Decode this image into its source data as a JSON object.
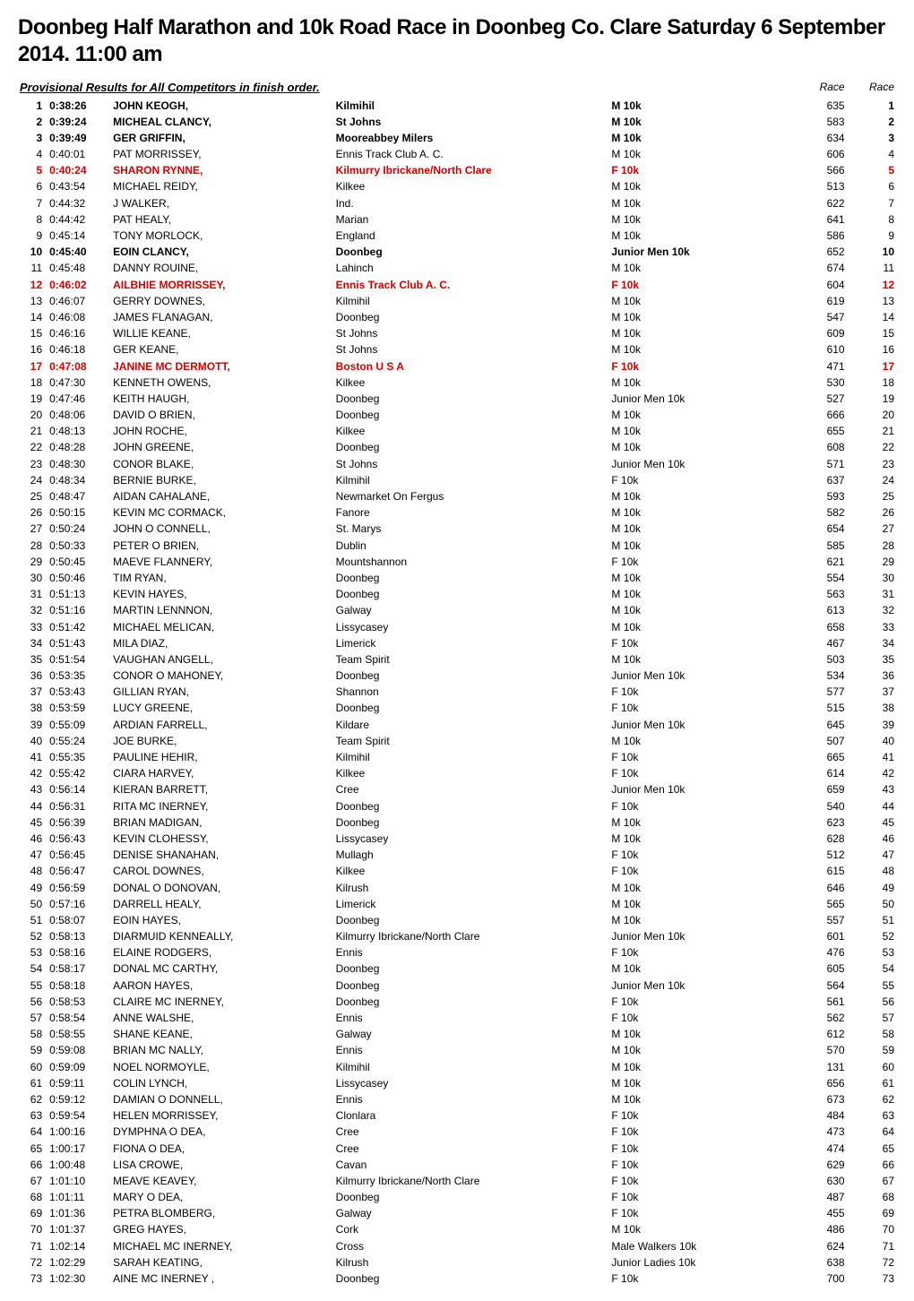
{
  "title": "Doonbeg Half Marathon and 10k Road Race in Doonbeg Co. Clare Saturday 6 September 2014. 11:00 am",
  "subtitle": "Provisional Results for All Competitors in finish order.",
  "header_race": "Race",
  "rows": [
    {
      "pos": 1,
      "time": "0:38:26",
      "name": "JOHN KEOGH,",
      "club": "Kilmihil",
      "cat": "M 10k",
      "rn1": 635,
      "rn2": 1,
      "bold": true
    },
    {
      "pos": 2,
      "time": "0:39:24",
      "name": "MICHEAL CLANCY,",
      "club": "St Johns",
      "cat": "M 10k",
      "rn1": 583,
      "rn2": 2,
      "bold": true
    },
    {
      "pos": 3,
      "time": "0:39:49",
      "name": "GER GRIFFIN,",
      "club": "Mooreabbey Milers",
      "cat": "M 10k",
      "rn1": 634,
      "rn2": 3,
      "bold": true
    },
    {
      "pos": 4,
      "time": "0:40:01",
      "name": "PAT MORRISSEY,",
      "club": "Ennis Track Club A. C.",
      "cat": "M 10k",
      "rn1": 606,
      "rn2": 4
    },
    {
      "pos": 5,
      "time": "0:40:24",
      "name": "SHARON RYNNE,",
      "club": "Kilmurry Ibrickane/North Clare",
      "cat": "F 10k",
      "rn1": 566,
      "rn2": 5,
      "bold": true,
      "red": true
    },
    {
      "pos": 6,
      "time": "0:43:54",
      "name": "MICHAEL REIDY,",
      "club": "Kilkee",
      "cat": "M 10k",
      "rn1": 513,
      "rn2": 6
    },
    {
      "pos": 7,
      "time": "0:44:32",
      "name": "J WALKER,",
      "club": "Ind.",
      "cat": "M 10k",
      "rn1": 622,
      "rn2": 7
    },
    {
      "pos": 8,
      "time": "0:44:42",
      "name": "PAT HEALY,",
      "club": "Marian",
      "cat": "M 10k",
      "rn1": 641,
      "rn2": 8
    },
    {
      "pos": 9,
      "time": "0:45:14",
      "name": "TONY MORLOCK,",
      "club": "England",
      "cat": "M 10k",
      "rn1": 586,
      "rn2": 9
    },
    {
      "pos": 10,
      "time": "0:45:40",
      "name": "EOIN CLANCY,",
      "club": "Doonbeg",
      "cat": "Junior Men 10k",
      "rn1": 652,
      "rn2": 10,
      "bold": true
    },
    {
      "pos": 11,
      "time": "0:45:48",
      "name": "DANNY ROUINE,",
      "club": "Lahinch",
      "cat": "M 10k",
      "rn1": 674,
      "rn2": 11
    },
    {
      "pos": 12,
      "time": "0:46:02",
      "name": "AILBHIE MORRISSEY,",
      "club": "Ennis Track Club A. C.",
      "cat": "F 10k",
      "rn1": 604,
      "rn2": 12,
      "bold": true,
      "red": true
    },
    {
      "pos": 13,
      "time": "0:46:07",
      "name": "GERRY DOWNES,",
      "club": "Kilmihil",
      "cat": "M 10k",
      "rn1": 619,
      "rn2": 13
    },
    {
      "pos": 14,
      "time": "0:46:08",
      "name": "JAMES FLANAGAN,",
      "club": "Doonbeg",
      "cat": "M 10k",
      "rn1": 547,
      "rn2": 14
    },
    {
      "pos": 15,
      "time": "0:46:16",
      "name": "WILLIE KEANE,",
      "club": "St Johns",
      "cat": "M 10k",
      "rn1": 609,
      "rn2": 15
    },
    {
      "pos": 16,
      "time": "0:46:18",
      "name": "GER KEANE,",
      "club": "St Johns",
      "cat": "M 10k",
      "rn1": 610,
      "rn2": 16
    },
    {
      "pos": 17,
      "time": "0:47:08",
      "name": "JANINE MC DERMOTT,",
      "club": "Boston  U S A",
      "cat": "F 10k",
      "rn1": 471,
      "rn2": 17,
      "bold": true,
      "red": true
    },
    {
      "pos": 18,
      "time": "0:47:30",
      "name": "KENNETH OWENS,",
      "club": "Kilkee",
      "cat": "M 10k",
      "rn1": 530,
      "rn2": 18
    },
    {
      "pos": 19,
      "time": "0:47:46",
      "name": "KEITH HAUGH,",
      "club": "Doonbeg",
      "cat": "Junior Men 10k",
      "rn1": 527,
      "rn2": 19
    },
    {
      "pos": 20,
      "time": "0:48:06",
      "name": "DAVID O BRIEN,",
      "club": "Doonbeg",
      "cat": "M 10k",
      "rn1": 666,
      "rn2": 20
    },
    {
      "pos": 21,
      "time": "0:48:13",
      "name": "JOHN ROCHE,",
      "club": "Kilkee",
      "cat": "M 10k",
      "rn1": 655,
      "rn2": 21
    },
    {
      "pos": 22,
      "time": "0:48:28",
      "name": "JOHN GREENE,",
      "club": "Doonbeg",
      "cat": "M 10k",
      "rn1": 608,
      "rn2": 22
    },
    {
      "pos": 23,
      "time": "0:48:30",
      "name": "CONOR BLAKE,",
      "club": "St Johns",
      "cat": "Junior Men 10k",
      "rn1": 571,
      "rn2": 23
    },
    {
      "pos": 24,
      "time": "0:48:34",
      "name": "BERNIE BURKE,",
      "club": "Kilmihil",
      "cat": "F 10k",
      "rn1": 637,
      "rn2": 24
    },
    {
      "pos": 25,
      "time": "0:48:47",
      "name": "AIDAN CAHALANE,",
      "club": "Newmarket On Fergus",
      "cat": "M 10k",
      "rn1": 593,
      "rn2": 25
    },
    {
      "pos": 26,
      "time": "0:50:15",
      "name": "KEVIN MC CORMACK,",
      "club": "Fanore",
      "cat": "M 10k",
      "rn1": 582,
      "rn2": 26
    },
    {
      "pos": 27,
      "time": "0:50:24",
      "name": "JOHN O CONNELL,",
      "club": "St. Marys",
      "cat": "M 10k",
      "rn1": 654,
      "rn2": 27
    },
    {
      "pos": 28,
      "time": "0:50:33",
      "name": "PETER O BRIEN,",
      "club": "Dublin",
      "cat": "M 10k",
      "rn1": 585,
      "rn2": 28
    },
    {
      "pos": 29,
      "time": "0:50:45",
      "name": "MAEVE FLANNERY,",
      "club": "Mountshannon",
      "cat": "F 10k",
      "rn1": 621,
      "rn2": 29
    },
    {
      "pos": 30,
      "time": "0:50:46",
      "name": "TIM RYAN,",
      "club": "Doonbeg",
      "cat": "M 10k",
      "rn1": 554,
      "rn2": 30
    },
    {
      "pos": 31,
      "time": "0:51:13",
      "name": "KEVIN HAYES,",
      "club": "Doonbeg",
      "cat": "M 10k",
      "rn1": 563,
      "rn2": 31
    },
    {
      "pos": 32,
      "time": "0:51:16",
      "name": "MARTIN LENNNON,",
      "club": "Galway",
      "cat": "M 10k",
      "rn1": 613,
      "rn2": 32
    },
    {
      "pos": 33,
      "time": "0:51:42",
      "name": "MICHAEL MELICAN,",
      "club": "Lissycasey",
      "cat": "M 10k",
      "rn1": 658,
      "rn2": 33
    },
    {
      "pos": 34,
      "time": "0:51:43",
      "name": "MILA DIAZ,",
      "club": "Limerick",
      "cat": "F 10k",
      "rn1": 467,
      "rn2": 34
    },
    {
      "pos": 35,
      "time": "0:51:54",
      "name": "VAUGHAN ANGELL,",
      "club": "Team Spirit",
      "cat": "M 10k",
      "rn1": 503,
      "rn2": 35
    },
    {
      "pos": 36,
      "time": "0:53:35",
      "name": "CONOR O MAHONEY,",
      "club": "Doonbeg",
      "cat": "Junior Men 10k",
      "rn1": 534,
      "rn2": 36
    },
    {
      "pos": 37,
      "time": "0:53:43",
      "name": "GILLIAN RYAN,",
      "club": "Shannon",
      "cat": "F 10k",
      "rn1": 577,
      "rn2": 37
    },
    {
      "pos": 38,
      "time": "0:53:59",
      "name": "LUCY GREENE,",
      "club": "Doonbeg",
      "cat": "F 10k",
      "rn1": 515,
      "rn2": 38
    },
    {
      "pos": 39,
      "time": "0:55:09",
      "name": "ARDIAN FARRELL,",
      "club": "Kildare",
      "cat": "Junior Men 10k",
      "rn1": 645,
      "rn2": 39
    },
    {
      "pos": 40,
      "time": "0:55:24",
      "name": "JOE BURKE,",
      "club": "Team Spirit",
      "cat": "M 10k",
      "rn1": 507,
      "rn2": 40
    },
    {
      "pos": 41,
      "time": "0:55:35",
      "name": "PAULINE HEHIR,",
      "club": "Kilmihil",
      "cat": "F 10k",
      "rn1": 665,
      "rn2": 41
    },
    {
      "pos": 42,
      "time": "0:55:42",
      "name": "CIARA HARVEY,",
      "club": "Kilkee",
      "cat": "F 10k",
      "rn1": 614,
      "rn2": 42
    },
    {
      "pos": 43,
      "time": "0:56:14",
      "name": "KIERAN BARRETT,",
      "club": "Cree",
      "cat": "Junior Men 10k",
      "rn1": 659,
      "rn2": 43
    },
    {
      "pos": 44,
      "time": "0:56:31",
      "name": "RITA MC INERNEY,",
      "club": "Doonbeg",
      "cat": "F 10k",
      "rn1": 540,
      "rn2": 44
    },
    {
      "pos": 45,
      "time": "0:56:39",
      "name": "BRIAN MADIGAN,",
      "club": "Doonbeg",
      "cat": "M 10k",
      "rn1": 623,
      "rn2": 45
    },
    {
      "pos": 46,
      "time": "0:56:43",
      "name": "KEVIN CLOHESSY,",
      "club": "Lissycasey",
      "cat": "M 10k",
      "rn1": 628,
      "rn2": 46
    },
    {
      "pos": 47,
      "time": "0:56:45",
      "name": "DENISE SHANAHAN,",
      "club": "Mullagh",
      "cat": "F 10k",
      "rn1": 512,
      "rn2": 47
    },
    {
      "pos": 48,
      "time": "0:56:47",
      "name": "CAROL DOWNES,",
      "club": "Kilkee",
      "cat": "F 10k",
      "rn1": 615,
      "rn2": 48
    },
    {
      "pos": 49,
      "time": "0:56:59",
      "name": "DONAL O DONOVAN,",
      "club": "Kilrush",
      "cat": "M 10k",
      "rn1": 646,
      "rn2": 49
    },
    {
      "pos": 50,
      "time": "0:57:16",
      "name": "DARRELL HEALY,",
      "club": "Limerick",
      "cat": "M 10k",
      "rn1": 565,
      "rn2": 50
    },
    {
      "pos": 51,
      "time": "0:58:07",
      "name": "EOIN HAYES,",
      "club": "Doonbeg",
      "cat": "M 10k",
      "rn1": 557,
      "rn2": 51
    },
    {
      "pos": 52,
      "time": "0:58:13",
      "name": "DIARMUID KENNEALLY,",
      "club": "Kilmurry Ibrickane/North Clare",
      "cat": "Junior Men 10k",
      "rn1": 601,
      "rn2": 52
    },
    {
      "pos": 53,
      "time": "0:58:16",
      "name": "ELAINE RODGERS,",
      "club": "Ennis",
      "cat": "F 10k",
      "rn1": 476,
      "rn2": 53
    },
    {
      "pos": 54,
      "time": "0:58:17",
      "name": "DONAL MC CARTHY,",
      "club": "Doonbeg",
      "cat": "M 10k",
      "rn1": 605,
      "rn2": 54
    },
    {
      "pos": 55,
      "time": "0:58:18",
      "name": "AARON HAYES,",
      "club": "Doonbeg",
      "cat": "Junior Men 10k",
      "rn1": 564,
      "rn2": 55
    },
    {
      "pos": 56,
      "time": "0:58:53",
      "name": "CLAIRE MC INERNEY,",
      "club": "Doonbeg",
      "cat": "F 10k",
      "rn1": 561,
      "rn2": 56
    },
    {
      "pos": 57,
      "time": "0:58:54",
      "name": "ANNE WALSHE,",
      "club": "Ennis",
      "cat": "F 10k",
      "rn1": 562,
      "rn2": 57
    },
    {
      "pos": 58,
      "time": "0:58:55",
      "name": "SHANE KEANE,",
      "club": "Galway",
      "cat": "M 10k",
      "rn1": 612,
      "rn2": 58
    },
    {
      "pos": 59,
      "time": "0:59:08",
      "name": "BRIAN MC NALLY,",
      "club": "Ennis",
      "cat": "M 10k",
      "rn1": 570,
      "rn2": 59
    },
    {
      "pos": 60,
      "time": "0:59:09",
      "name": "NOEL NORMOYLE,",
      "club": "Kilmihil",
      "cat": "M 10k",
      "rn1": 131,
      "rn2": 60
    },
    {
      "pos": 61,
      "time": "0:59:11",
      "name": "COLIN LYNCH,",
      "club": "Lissycasey",
      "cat": "M 10k",
      "rn1": 656,
      "rn2": 61
    },
    {
      "pos": 62,
      "time": "0:59:12",
      "name": "DAMIAN O DONNELL,",
      "club": "Ennis",
      "cat": "M 10k",
      "rn1": 673,
      "rn2": 62
    },
    {
      "pos": 63,
      "time": "0:59:54",
      "name": "HELEN MORRISSEY,",
      "club": "Clonlara",
      "cat": "F 10k",
      "rn1": 484,
      "rn2": 63
    },
    {
      "pos": 64,
      "time": "1:00:16",
      "name": "DYMPHNA O DEA,",
      "club": "Cree",
      "cat": "F 10k",
      "rn1": 473,
      "rn2": 64
    },
    {
      "pos": 65,
      "time": "1:00:17",
      "name": "FIONA O DEA,",
      "club": "Cree",
      "cat": "F 10k",
      "rn1": 474,
      "rn2": 65
    },
    {
      "pos": 66,
      "time": "1:00:48",
      "name": "LISA CROWE,",
      "club": "Cavan",
      "cat": "F 10k",
      "rn1": 629,
      "rn2": 66
    },
    {
      "pos": 67,
      "time": "1:01:10",
      "name": "MEAVE KEAVEY,",
      "club": "Kilmurry Ibrickane/North Clare",
      "cat": "F 10k",
      "rn1": 630,
      "rn2": 67
    },
    {
      "pos": 68,
      "time": "1:01:11",
      "name": "MARY O DEA,",
      "club": "Doonbeg",
      "cat": "F 10k",
      "rn1": 487,
      "rn2": 68
    },
    {
      "pos": 69,
      "time": "1:01:36",
      "name": "PETRA BLOMBERG,",
      "club": "Galway",
      "cat": "F 10k",
      "rn1": 455,
      "rn2": 69
    },
    {
      "pos": 70,
      "time": "1:01:37",
      "name": "GREG HAYES,",
      "club": "Cork",
      "cat": "M 10k",
      "rn1": 486,
      "rn2": 70
    },
    {
      "pos": 71,
      "time": "1:02:14",
      "name": "MICHAEL MC INERNEY,",
      "club": "Cross",
      "cat": "Male Walkers 10k",
      "rn1": 624,
      "rn2": 71
    },
    {
      "pos": 72,
      "time": "1:02:29",
      "name": "SARAH KEATING,",
      "club": "Kilrush",
      "cat": "Junior Ladies 10k",
      "rn1": 638,
      "rn2": 72
    },
    {
      "pos": 73,
      "time": "1:02:30",
      "name": "AINE  MC INERNEY ,",
      "club": "Doonbeg",
      "cat": "F 10k",
      "rn1": 700,
      "rn2": 73
    }
  ]
}
